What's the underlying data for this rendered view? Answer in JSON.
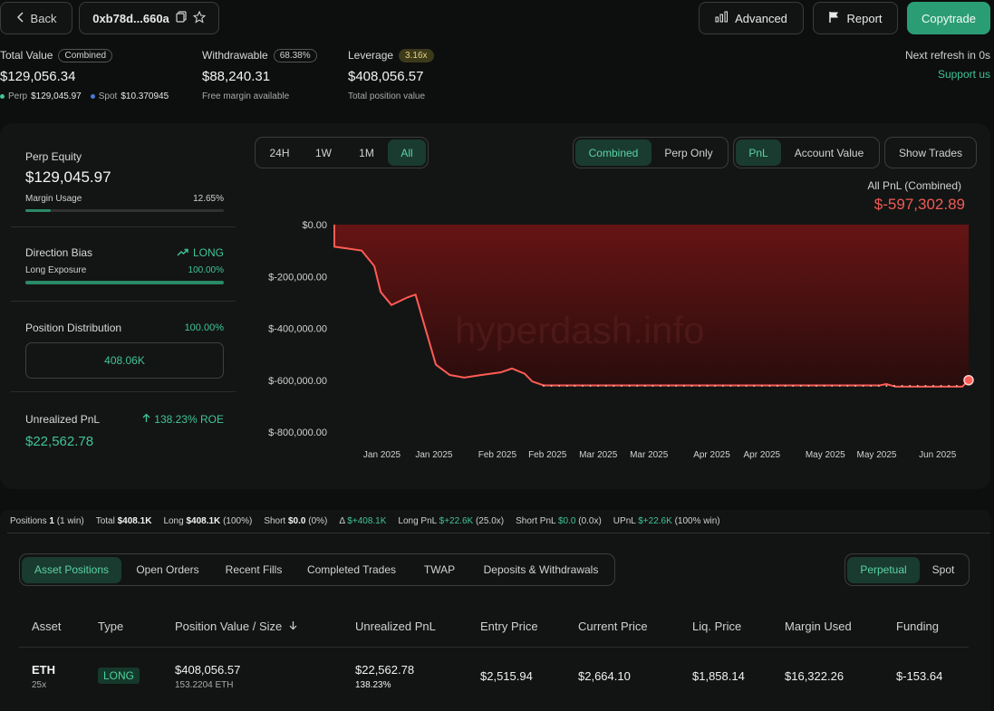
{
  "header": {
    "back_label": "Back",
    "address": "0xb78d...660a",
    "advanced_label": "Advanced",
    "report_label": "Report",
    "copytrade_label": "Copytrade"
  },
  "summary": {
    "total_value": {
      "label": "Total Value",
      "badge": "Combined",
      "value": "$129,056.34",
      "perp_label": "Perp",
      "perp_value": "$129,045.97",
      "spot_label": "Spot",
      "spot_value": "$10.370945"
    },
    "withdrawable": {
      "label": "Withdrawable",
      "badge": "68.38%",
      "value": "$88,240.31",
      "sub": "Free margin available"
    },
    "leverage": {
      "label": "Leverage",
      "badge": "3.16x",
      "value": "$408,056.57",
      "sub": "Total position value"
    },
    "refresh_text": "Next refresh in 0s",
    "support_link": "Support us"
  },
  "side": {
    "perp_equity_label": "Perp Equity",
    "perp_equity_value": "$129,045.97",
    "margin_usage_label": "Margin Usage",
    "margin_usage_value": "12.65%",
    "margin_usage_pct": 12.65,
    "direction_bias_label": "Direction Bias",
    "direction_bias_value": "LONG",
    "long_exposure_label": "Long Exposure",
    "long_exposure_value": "100.00%",
    "long_exposure_pct": 100,
    "position_distribution_label": "Position Distribution",
    "position_distribution_pct": "100.00%",
    "position_distribution_value": "408.06K",
    "unrealized_pnl_label": "Unrealized PnL",
    "unrealized_roe": "138.23% ROE",
    "unrealized_pnl_value": "$22,562.78"
  },
  "controls": {
    "range_tabs": [
      "24H",
      "1W",
      "1M",
      "All"
    ],
    "range_selected": "All",
    "scope_tabs": [
      "Combined",
      "Perp Only"
    ],
    "scope_selected": "Combined",
    "metric_tabs": [
      "PnL",
      "Account Value"
    ],
    "metric_selected": "PnL",
    "show_trades_label": "Show Trades"
  },
  "pnl_header": {
    "title": "All PnL (Combined)",
    "value": "$-597,302.89"
  },
  "chart_data": {
    "type": "area",
    "watermark": "hyperdash.info",
    "y_ticks": [
      "$0.00",
      "$-200,000.00",
      "$-400,000.00",
      "$-600,000.00",
      "$-800,000.00"
    ],
    "y_tick_values": [
      0,
      -200000,
      -400000,
      -600000,
      -800000
    ],
    "ylim": [
      -800000,
      0
    ],
    "x_tick_labels": [
      "Jan 2025",
      "Jan 2025",
      "Feb 2025",
      "Feb 2025",
      "Mar 2025",
      "Mar 2025",
      "Apr 2025",
      "Apr 2025",
      "May 2025",
      "May 2025",
      "Jun 2025"
    ],
    "x_tick_fraction": [
      0.075,
      0.157,
      0.257,
      0.336,
      0.416,
      0.496,
      0.595,
      0.674,
      0.774,
      0.855,
      0.951
    ],
    "series": [
      {
        "x_fraction": [
          0.0,
          0.0,
          0.043,
          0.063,
          0.073,
          0.09,
          0.116,
          0.128,
          0.16,
          0.182,
          0.205,
          0.232,
          0.262,
          0.28,
          0.3,
          0.312,
          0.33,
          0.36,
          0.4,
          0.5,
          0.6,
          0.7,
          0.8,
          0.86,
          0.87,
          0.885,
          0.9,
          0.95,
          0.99,
          1.0
        ],
        "values": [
          0,
          -85000,
          -100000,
          -160000,
          -260000,
          -310000,
          -280000,
          -270000,
          -540000,
          -580000,
          -590000,
          -580000,
          -570000,
          -555000,
          -575000,
          -605000,
          -620000,
          -620000,
          -620000,
          -620000,
          -620000,
          -620000,
          -620000,
          -620000,
          -615000,
          -625000,
          -625000,
          -625000,
          -625000,
          -600000
        ]
      }
    ]
  },
  "positions_bar": {
    "positions_label": "Positions",
    "positions_count": "1",
    "positions_note": "(1 win)",
    "total_label": "Total",
    "total_value": "$408.1K",
    "long_label": "Long",
    "long_value": "$408.1K",
    "long_note": "(100%)",
    "short_label": "Short",
    "short_value": "$0.0",
    "short_note": "(0%)",
    "delta_label": "Δ",
    "delta_value": "$+408.1K",
    "long_pnl_label": "Long PnL",
    "long_pnl_value": "$+22.6K",
    "long_pnl_note": "(25.0x)",
    "short_pnl_label": "Short PnL",
    "short_pnl_value": "$0.0",
    "short_pnl_note": "(0.0x)",
    "upnl_label": "UPnL",
    "upnl_value": "$+22.6K",
    "upnl_note": "(100% win)"
  },
  "tabs": [
    "Asset Positions",
    "Open Orders",
    "Recent Fills",
    "Completed Trades",
    "TWAP",
    "Deposits & Withdrawals"
  ],
  "tabs_selected": "Asset Positions",
  "market_tabs": [
    "Perpetual",
    "Spot"
  ],
  "market_selected": "Perpetual",
  "table": {
    "headers": [
      "Asset",
      "Type",
      "Position Value / Size",
      "Unrealized PnL",
      "Entry Price",
      "Current Price",
      "Liq. Price",
      "Margin Used",
      "Funding"
    ],
    "row": {
      "asset": "ETH",
      "leverage": "25x",
      "type": "LONG",
      "position_value": "$408,056.57",
      "size": "153.2204 ETH",
      "upnl": "$22,562.78",
      "upnl_pct": "138.23%",
      "entry": "$2,515.94",
      "current": "$2,664.10",
      "liq": "$1,858.14",
      "margin": "$16,322.26",
      "funding": "$-153.64"
    }
  },
  "colors": {
    "accent": "#40c496",
    "negative": "#ee5a55",
    "copytrade": "#2b9d74"
  }
}
